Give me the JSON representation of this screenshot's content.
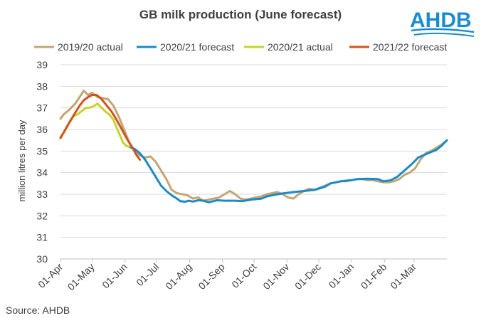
{
  "logo": {
    "text": "AHDB",
    "color": "#1a8ccf"
  },
  "source": "Source: AHDB",
  "chart_data": {
    "type": "line",
    "title": "GB milk production (June forecast)",
    "xlabel": "",
    "ylabel": "million litres per day",
    "ylim": [
      30,
      39
    ],
    "yticks": [
      "30",
      "31",
      "32",
      "33",
      "34",
      "35",
      "36",
      "37",
      "38",
      "39"
    ],
    "xlim": [
      0,
      365
    ],
    "x_unit": "days from 01-Apr",
    "xticks": [
      {
        "label": "01-Apr",
        "x": 0
      },
      {
        "label": "01-May",
        "x": 30
      },
      {
        "label": "01-Jun",
        "x": 61
      },
      {
        "label": "01-Jul",
        "x": 91
      },
      {
        "label": "01-Aug",
        "x": 122
      },
      {
        "label": "01-Sep",
        "x": 153
      },
      {
        "label": "01-Oct",
        "x": 183
      },
      {
        "label": "01-Nov",
        "x": 214
      },
      {
        "label": "01-Dec",
        "x": 244
      },
      {
        "label": "01-Jan",
        "x": 275
      },
      {
        "label": "01-Feb",
        "x": 306
      },
      {
        "label": "01-Mar",
        "x": 334
      }
    ],
    "grid": "horizontal",
    "legend_position": "top",
    "series": [
      {
        "name": "2019/20 actual",
        "color": "#c4a574",
        "points": [
          [
            0,
            36.5
          ],
          [
            3,
            36.7
          ],
          [
            8,
            36.9
          ],
          [
            14,
            37.2
          ],
          [
            18,
            37.5
          ],
          [
            22,
            37.8
          ],
          [
            26,
            37.6
          ],
          [
            30,
            37.7
          ],
          [
            35,
            37.5
          ],
          [
            40,
            37.45
          ],
          [
            45,
            37.4
          ],
          [
            50,
            37.1
          ],
          [
            55,
            36.6
          ],
          [
            60,
            36.0
          ],
          [
            65,
            35.4
          ],
          [
            70,
            35.0
          ],
          [
            75,
            34.8
          ],
          [
            80,
            34.7
          ],
          [
            85,
            34.75
          ],
          [
            90,
            34.5
          ],
          [
            95,
            34.1
          ],
          [
            100,
            33.7
          ],
          [
            105,
            33.2
          ],
          [
            110,
            33.05
          ],
          [
            115,
            33.0
          ],
          [
            120,
            32.95
          ],
          [
            125,
            32.8
          ],
          [
            130,
            32.85
          ],
          [
            135,
            32.7
          ],
          [
            140,
            32.75
          ],
          [
            145,
            32.8
          ],
          [
            150,
            32.85
          ],
          [
            155,
            33.0
          ],
          [
            160,
            33.15
          ],
          [
            165,
            33.0
          ],
          [
            170,
            32.8
          ],
          [
            175,
            32.75
          ],
          [
            180,
            32.8
          ],
          [
            185,
            32.85
          ],
          [
            190,
            32.9
          ],
          [
            195,
            33.0
          ],
          [
            200,
            33.05
          ],
          [
            205,
            33.1
          ],
          [
            210,
            33.0
          ],
          [
            215,
            32.85
          ],
          [
            220,
            32.8
          ],
          [
            225,
            33.0
          ],
          [
            230,
            33.15
          ],
          [
            235,
            33.25
          ],
          [
            240,
            33.2
          ],
          [
            245,
            33.3
          ],
          [
            250,
            33.4
          ],
          [
            255,
            33.5
          ],
          [
            260,
            33.55
          ],
          [
            265,
            33.6
          ],
          [
            270,
            33.6
          ],
          [
            275,
            33.65
          ],
          [
            280,
            33.7
          ],
          [
            285,
            33.7
          ],
          [
            290,
            33.65
          ],
          [
            295,
            33.65
          ],
          [
            300,
            33.6
          ],
          [
            305,
            33.55
          ],
          [
            310,
            33.55
          ],
          [
            315,
            33.6
          ],
          [
            320,
            33.7
          ],
          [
            325,
            33.9
          ],
          [
            330,
            34.0
          ],
          [
            335,
            34.2
          ],
          [
            340,
            34.6
          ],
          [
            345,
            34.9
          ],
          [
            350,
            35.0
          ],
          [
            355,
            35.15
          ],
          [
            360,
            35.3
          ],
          [
            365,
            35.5
          ]
        ]
      },
      {
        "name": "2020/21 forecast",
        "color": "#1b8ac7",
        "points": [
          [
            65,
            35.2
          ],
          [
            70,
            35.1
          ],
          [
            75,
            34.9
          ],
          [
            80,
            34.6
          ],
          [
            85,
            34.2
          ],
          [
            90,
            33.8
          ],
          [
            95,
            33.4
          ],
          [
            100,
            33.15
          ],
          [
            105,
            32.95
          ],
          [
            110,
            32.8
          ],
          [
            113,
            32.68
          ],
          [
            118,
            32.65
          ],
          [
            121,
            32.7
          ],
          [
            125,
            32.66
          ],
          [
            130,
            32.72
          ],
          [
            135,
            32.7
          ],
          [
            140,
            32.62
          ],
          [
            143,
            32.66
          ],
          [
            148,
            32.72
          ],
          [
            155,
            32.7
          ],
          [
            165,
            32.7
          ],
          [
            172,
            32.68
          ],
          [
            180,
            32.75
          ],
          [
            190,
            32.8
          ],
          [
            195,
            32.9
          ],
          [
            200,
            32.95
          ],
          [
            205,
            33.0
          ],
          [
            212,
            33.05
          ],
          [
            220,
            33.1
          ],
          [
            230,
            33.15
          ],
          [
            240,
            33.2
          ],
          [
            250,
            33.35
          ],
          [
            255,
            33.5
          ],
          [
            260,
            33.55
          ],
          [
            265,
            33.6
          ],
          [
            275,
            33.65
          ],
          [
            280,
            33.7
          ],
          [
            290,
            33.72
          ],
          [
            300,
            33.7
          ],
          [
            305,
            33.6
          ],
          [
            312,
            33.65
          ],
          [
            318,
            33.8
          ],
          [
            325,
            34.1
          ],
          [
            332,
            34.4
          ],
          [
            338,
            34.7
          ],
          [
            345,
            34.85
          ],
          [
            350,
            34.95
          ],
          [
            355,
            35.05
          ],
          [
            360,
            35.25
          ],
          [
            365,
            35.5
          ]
        ]
      },
      {
        "name": "2020/21 actual",
        "color": "#c8d22b",
        "points": [
          [
            0,
            35.65
          ],
          [
            3,
            35.85
          ],
          [
            6,
            36.1
          ],
          [
            9,
            36.35
          ],
          [
            12,
            36.6
          ],
          [
            16,
            36.7
          ],
          [
            20,
            36.85
          ],
          [
            24,
            37.0
          ],
          [
            28,
            37.02
          ],
          [
            32,
            37.1
          ],
          [
            35,
            37.2
          ],
          [
            38,
            37.05
          ],
          [
            42,
            36.85
          ],
          [
            46,
            36.7
          ],
          [
            50,
            36.45
          ],
          [
            53,
            36.1
          ],
          [
            56,
            35.75
          ],
          [
            59,
            35.4
          ],
          [
            62,
            35.25
          ],
          [
            65,
            35.2
          ]
        ]
      },
      {
        "name": "2021/22 forecast",
        "color": "#d0541e",
        "points": [
          [
            0,
            35.6
          ],
          [
            4,
            35.95
          ],
          [
            8,
            36.3
          ],
          [
            13,
            36.7
          ],
          [
            18,
            37.1
          ],
          [
            22,
            37.35
          ],
          [
            26,
            37.5
          ],
          [
            30,
            37.6
          ],
          [
            34,
            37.6
          ],
          [
            38,
            37.45
          ],
          [
            43,
            37.15
          ],
          [
            48,
            36.85
          ],
          [
            53,
            36.45
          ],
          [
            58,
            36.0
          ],
          [
            63,
            35.55
          ],
          [
            68,
            35.15
          ],
          [
            72,
            34.8
          ],
          [
            75,
            34.6
          ]
        ]
      }
    ]
  }
}
